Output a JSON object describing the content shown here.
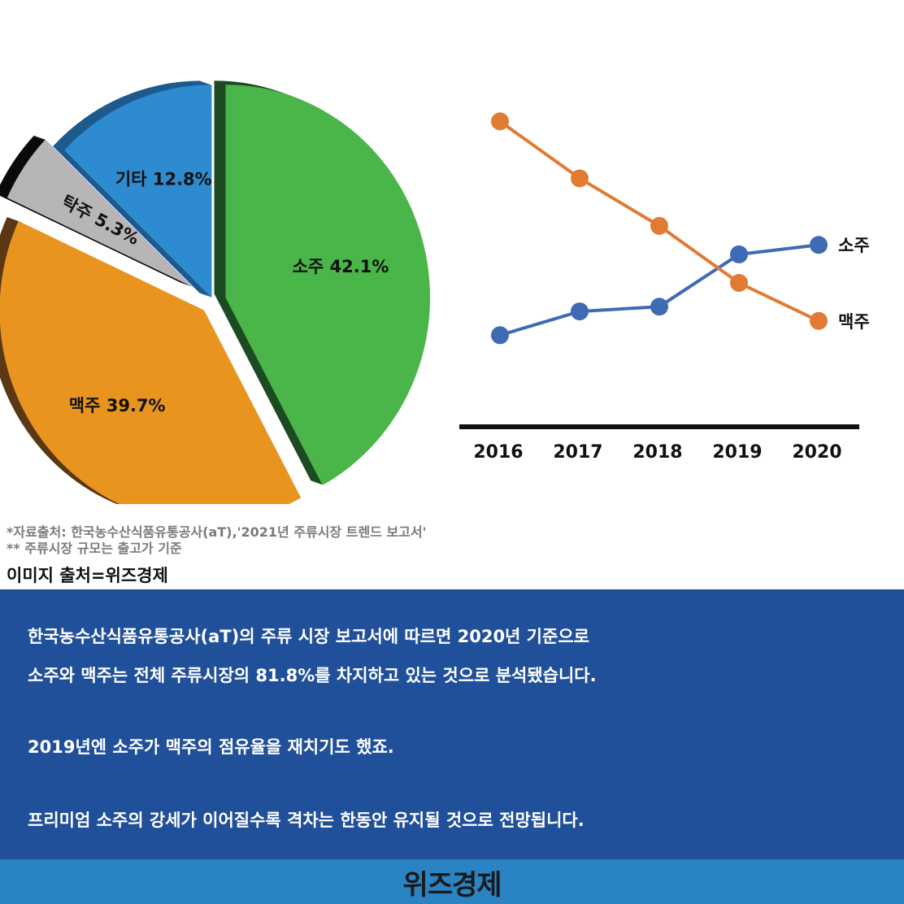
{
  "chart_data": [
    {
      "type": "pie",
      "slices": [
        {
          "label": "소주",
          "value": 42.1,
          "color": "#4ab548",
          "side": "#1c4a22"
        },
        {
          "label": "맥주",
          "value": 39.7,
          "color": "#e8941f",
          "side": "#5a3816"
        },
        {
          "label": "탁주",
          "value": 5.3,
          "color": "#b6b6b9",
          "side": "#0a0a0a"
        },
        {
          "label": "기타",
          "value": 12.8,
          "color": "#2f8bd0",
          "side": "#1d5a8d"
        }
      ],
      "labels": [
        "소주 42.1%",
        "맥주 39.7%",
        "탁주 5.3%",
        "기타 12.8%"
      ]
    },
    {
      "type": "line",
      "categories": [
        "2016",
        "2017",
        "2018",
        "2019",
        "2020"
      ],
      "series": [
        {
          "name": "소주",
          "color": "#3f6ab4",
          "values": [
            1,
            2,
            2.2,
            4.4,
            4.8
          ]
        },
        {
          "name": "맥주",
          "color": "#e17b34",
          "values": [
            10,
            7.6,
            5.6,
            3.2,
            1.6
          ]
        }
      ],
      "ylim": [
        -2,
        11
      ],
      "axis": "x-only",
      "grid": false
    }
  ],
  "notes": {
    "source": "*자료출처: 한국농수산식품유통공사(aT),'2021년 주류시장 트렌드 보고서'",
    "basis": "** 주류시장 규모는 출고가 기준",
    "image_credit": "이미지 출처=위즈경제"
  },
  "panel": {
    "line1": "한국농수산식품유통공사(aT)의 주류 시장 보고서에 따르면  2020년 기준으로",
    "line2": "소주와 맥주는  전체 주류시장의 81.8%를 차지하고 있는 것으로 분석됐습니다.",
    "line3": "2019년엔 소주가 맥주의 점유율을 재치기도 했죠.",
    "line4": "프리미엄 소주의 강세가 이어질수록 격차는 한동안 유지될 것으로 전망됩니다."
  },
  "footer": {
    "logo": "위즈경제"
  }
}
